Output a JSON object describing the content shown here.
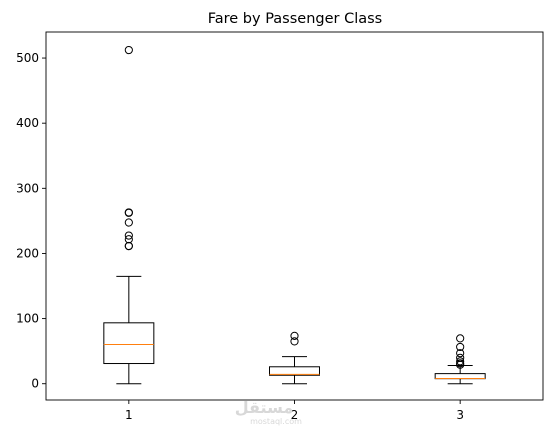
{
  "chart_data": {
    "type": "box",
    "title": "Fare by Passenger Class",
    "xlabel": "",
    "ylabel": "",
    "categories": [
      "1",
      "2",
      "3"
    ],
    "ylim": [
      -25,
      540
    ],
    "yticks": [
      0,
      100,
      200,
      300,
      400,
      500
    ],
    "grid": false,
    "legend": "none",
    "boxes": [
      {
        "category": "1",
        "whisker_low": 0,
        "q1": 31,
        "median": 60.3,
        "q3": 93.5,
        "whisker_high": 164.9,
        "outliers": [
          211.3,
          211.5,
          221.8,
          227.5,
          247.5,
          262.4,
          263,
          512.3
        ]
      },
      {
        "category": "2",
        "whisker_low": 0,
        "q1": 13,
        "median": 14.3,
        "q3": 26,
        "whisker_high": 41.6,
        "outliers": [
          65,
          73.5
        ]
      },
      {
        "category": "3",
        "whisker_low": 0,
        "q1": 7.75,
        "median": 8.05,
        "q3": 15.5,
        "whisker_high": 27.9,
        "outliers": [
          29.1,
          31.3,
          34.4,
          39.7,
          46.9,
          56.5,
          69.6
        ]
      }
    ],
    "colors": {
      "box": "#000000",
      "median": "#ff7f0e",
      "outlier": "#000000"
    }
  },
  "watermark": {
    "line1": "مستقل",
    "line2": "mostaql.com"
  }
}
